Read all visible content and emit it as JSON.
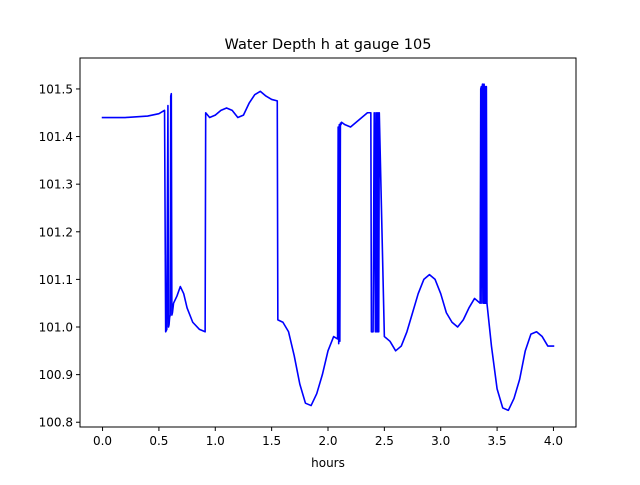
{
  "chart_data": {
    "type": "line",
    "title": "Water Depth h at gauge 105",
    "xlabel": "hours",
    "ylabel": "",
    "xlim": [
      -0.2,
      4.2
    ],
    "ylim": [
      100.79,
      101.565
    ],
    "xticks": [
      0.0,
      0.5,
      1.0,
      1.5,
      2.0,
      2.5,
      3.0,
      3.5,
      4.0
    ],
    "xtick_labels": [
      "0.0",
      "0.5",
      "1.0",
      "1.5",
      "2.0",
      "2.5",
      "3.0",
      "3.5",
      "4.0"
    ],
    "yticks": [
      100.8,
      100.9,
      101.0,
      101.1,
      101.2,
      101.3,
      101.4,
      101.5
    ],
    "ytick_labels": [
      "100.8",
      "100.9",
      "101.0",
      "101.1",
      "101.2",
      "101.3",
      "101.4",
      "101.5"
    ],
    "grid": false,
    "series": [
      {
        "color": "#0000ff",
        "x": [
          0.0,
          0.2,
          0.4,
          0.5,
          0.55,
          0.56,
          0.57,
          0.58,
          0.585,
          0.59,
          0.595,
          0.6,
          0.605,
          0.61,
          0.615,
          0.62,
          0.625,
          0.63,
          0.66,
          0.69,
          0.72,
          0.75,
          0.8,
          0.86,
          0.91,
          0.915,
          0.95,
          1.0,
          1.05,
          1.1,
          1.15,
          1.2,
          1.25,
          1.3,
          1.35,
          1.4,
          1.45,
          1.5,
          1.55,
          1.555,
          1.6,
          1.65,
          1.7,
          1.75,
          1.8,
          1.85,
          1.9,
          1.95,
          2.0,
          2.05,
          2.085,
          2.09,
          2.095,
          2.1,
          2.105,
          2.11,
          2.115,
          2.12,
          2.15,
          2.2,
          2.25,
          2.3,
          2.35,
          2.38,
          2.385,
          2.4,
          2.41,
          2.42,
          2.425,
          2.43,
          2.435,
          2.44,
          2.445,
          2.45,
          2.455,
          2.5,
          2.55,
          2.6,
          2.65,
          2.7,
          2.75,
          2.8,
          2.85,
          2.9,
          2.95,
          3.0,
          3.05,
          3.1,
          3.15,
          3.2,
          3.25,
          3.3,
          3.35,
          3.355,
          3.36,
          3.365,
          3.37,
          3.375,
          3.38,
          3.385,
          3.39,
          3.395,
          3.4,
          3.405,
          3.41,
          3.45,
          3.5,
          3.55,
          3.6,
          3.65,
          3.7,
          3.75,
          3.8,
          3.85,
          3.9,
          3.95,
          4.0
        ],
        "y": [
          101.44,
          101.44,
          101.443,
          101.448,
          101.455,
          100.99,
          100.995,
          101.465,
          101.0,
          101.005,
          101.02,
          101.025,
          101.485,
          101.49,
          101.025,
          101.03,
          101.04,
          101.05,
          101.065,
          101.085,
          101.07,
          101.04,
          101.01,
          100.995,
          100.99,
          101.45,
          101.44,
          101.445,
          101.455,
          101.46,
          101.455,
          101.44,
          101.445,
          101.47,
          101.488,
          101.495,
          101.485,
          101.478,
          101.475,
          101.015,
          101.01,
          100.99,
          100.94,
          100.88,
          100.84,
          100.835,
          100.86,
          100.9,
          100.95,
          100.98,
          100.975,
          101.42,
          100.965,
          101.425,
          100.97,
          101.428,
          101.425,
          101.43,
          101.425,
          101.42,
          101.43,
          101.44,
          101.45,
          101.45,
          100.99,
          100.99,
          101.45,
          100.99,
          101.45,
          100.99,
          101.45,
          100.99,
          101.45,
          100.99,
          101.45,
          100.98,
          100.97,
          100.95,
          100.96,
          100.99,
          101.03,
          101.07,
          101.1,
          101.11,
          101.1,
          101.07,
          101.03,
          101.01,
          101.0,
          101.015,
          101.04,
          101.06,
          101.05,
          101.5,
          101.505,
          101.05,
          101.51,
          101.51,
          101.05,
          101.51,
          101.05,
          101.505,
          101.05,
          101.505,
          101.05,
          100.96,
          100.87,
          100.83,
          100.825,
          100.85,
          100.89,
          100.95,
          100.985,
          100.99,
          100.98,
          100.96,
          100.96
        ]
      }
    ]
  }
}
